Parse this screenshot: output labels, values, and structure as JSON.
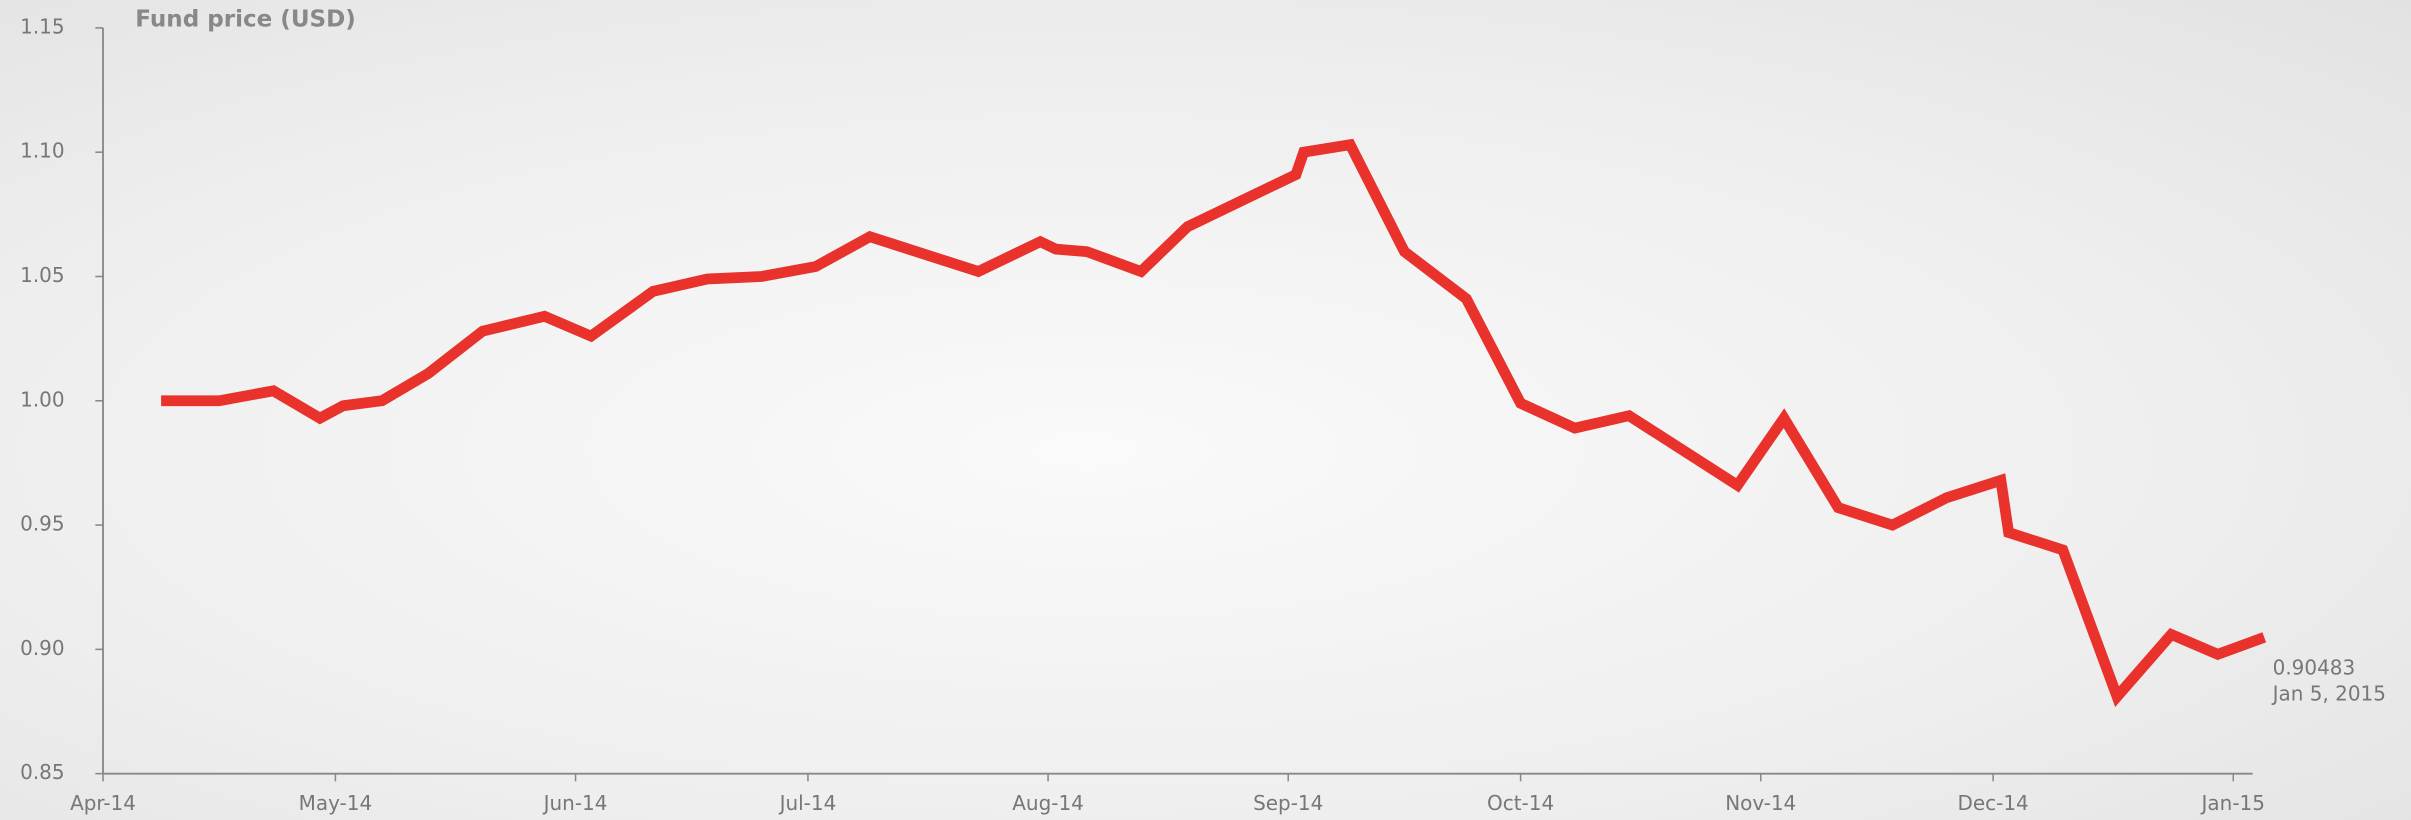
{
  "chart_data": {
    "type": "line",
    "y_label": "Fund price (USD)",
    "x": [
      7.5,
      15,
      22,
      28,
      31,
      36,
      42,
      49,
      57,
      63,
      71,
      78,
      85,
      92,
      99,
      106,
      113,
      121,
      123,
      127,
      134,
      140,
      154,
      155,
      161,
      168,
      176,
      183,
      190,
      197,
      211,
      217,
      224,
      231,
      238,
      245,
      246,
      253,
      260,
      267,
      273,
      279
    ],
    "series": [
      {
        "name": "Fund price",
        "color": "#e8322b",
        "values": [
          1.0,
          1.0,
          1.004,
          0.993,
          0.998,
          1.0,
          1.011,
          1.028,
          1.034,
          1.026,
          1.044,
          1.049,
          1.05,
          1.054,
          1.066,
          1.059,
          1.052,
          1.064,
          1.061,
          1.06,
          1.052,
          1.07,
          1.091,
          1.1,
          1.103,
          1.06,
          1.041,
          0.999,
          0.989,
          0.994,
          0.966,
          0.993,
          0.957,
          0.95,
          0.961,
          0.968,
          0.947,
          0.94,
          0.881,
          0.906,
          0.898,
          0.90483
        ]
      }
    ],
    "annotations": [
      {
        "label": "0.90483"
      },
      {
        "label": "Jan 5, 2015"
      }
    ],
    "xlim": [
      0,
      277.5
    ],
    "xticks": [
      {
        "value": 0,
        "label": "Apr-14"
      },
      {
        "value": 30,
        "label": "May-14"
      },
      {
        "value": 61,
        "label": "Jun-14"
      },
      {
        "value": 91,
        "label": "Jul-14"
      },
      {
        "value": 122,
        "label": "Aug-14"
      },
      {
        "value": 153,
        "label": "Sep-14"
      },
      {
        "value": 183,
        "label": "Oct-14"
      },
      {
        "value": 214,
        "label": "Nov-14"
      },
      {
        "value": 244,
        "label": "Dec-14"
      },
      {
        "value": 275,
        "label": "Jan-15"
      }
    ],
    "ylim": [
      0.85,
      1.15
    ],
    "yticks": [
      0.85,
      {
        "value": 0.9,
        "label": "0.90"
      },
      0.95,
      {
        "value": 1,
        "label": "1.00"
      },
      1.05,
      {
        "value": 1.1,
        "label": "1.10"
      },
      1.15
    ],
    "grid": false
  }
}
